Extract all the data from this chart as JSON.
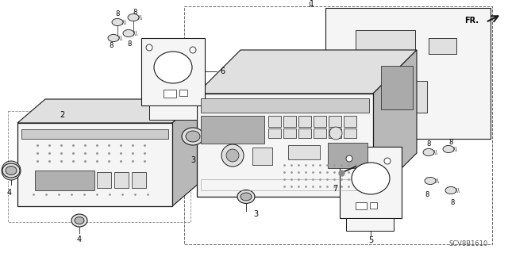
{
  "background_color": "#ffffff",
  "fig_width": 6.4,
  "fig_height": 3.19,
  "dpi": 100,
  "watermark": "SCV8B1610",
  "line_color": "#1a1a1a",
  "light_fill": "#f5f5f5",
  "mid_fill": "#e0e0e0",
  "dark_fill": "#b8b8b8",
  "very_dark": "#888888"
}
